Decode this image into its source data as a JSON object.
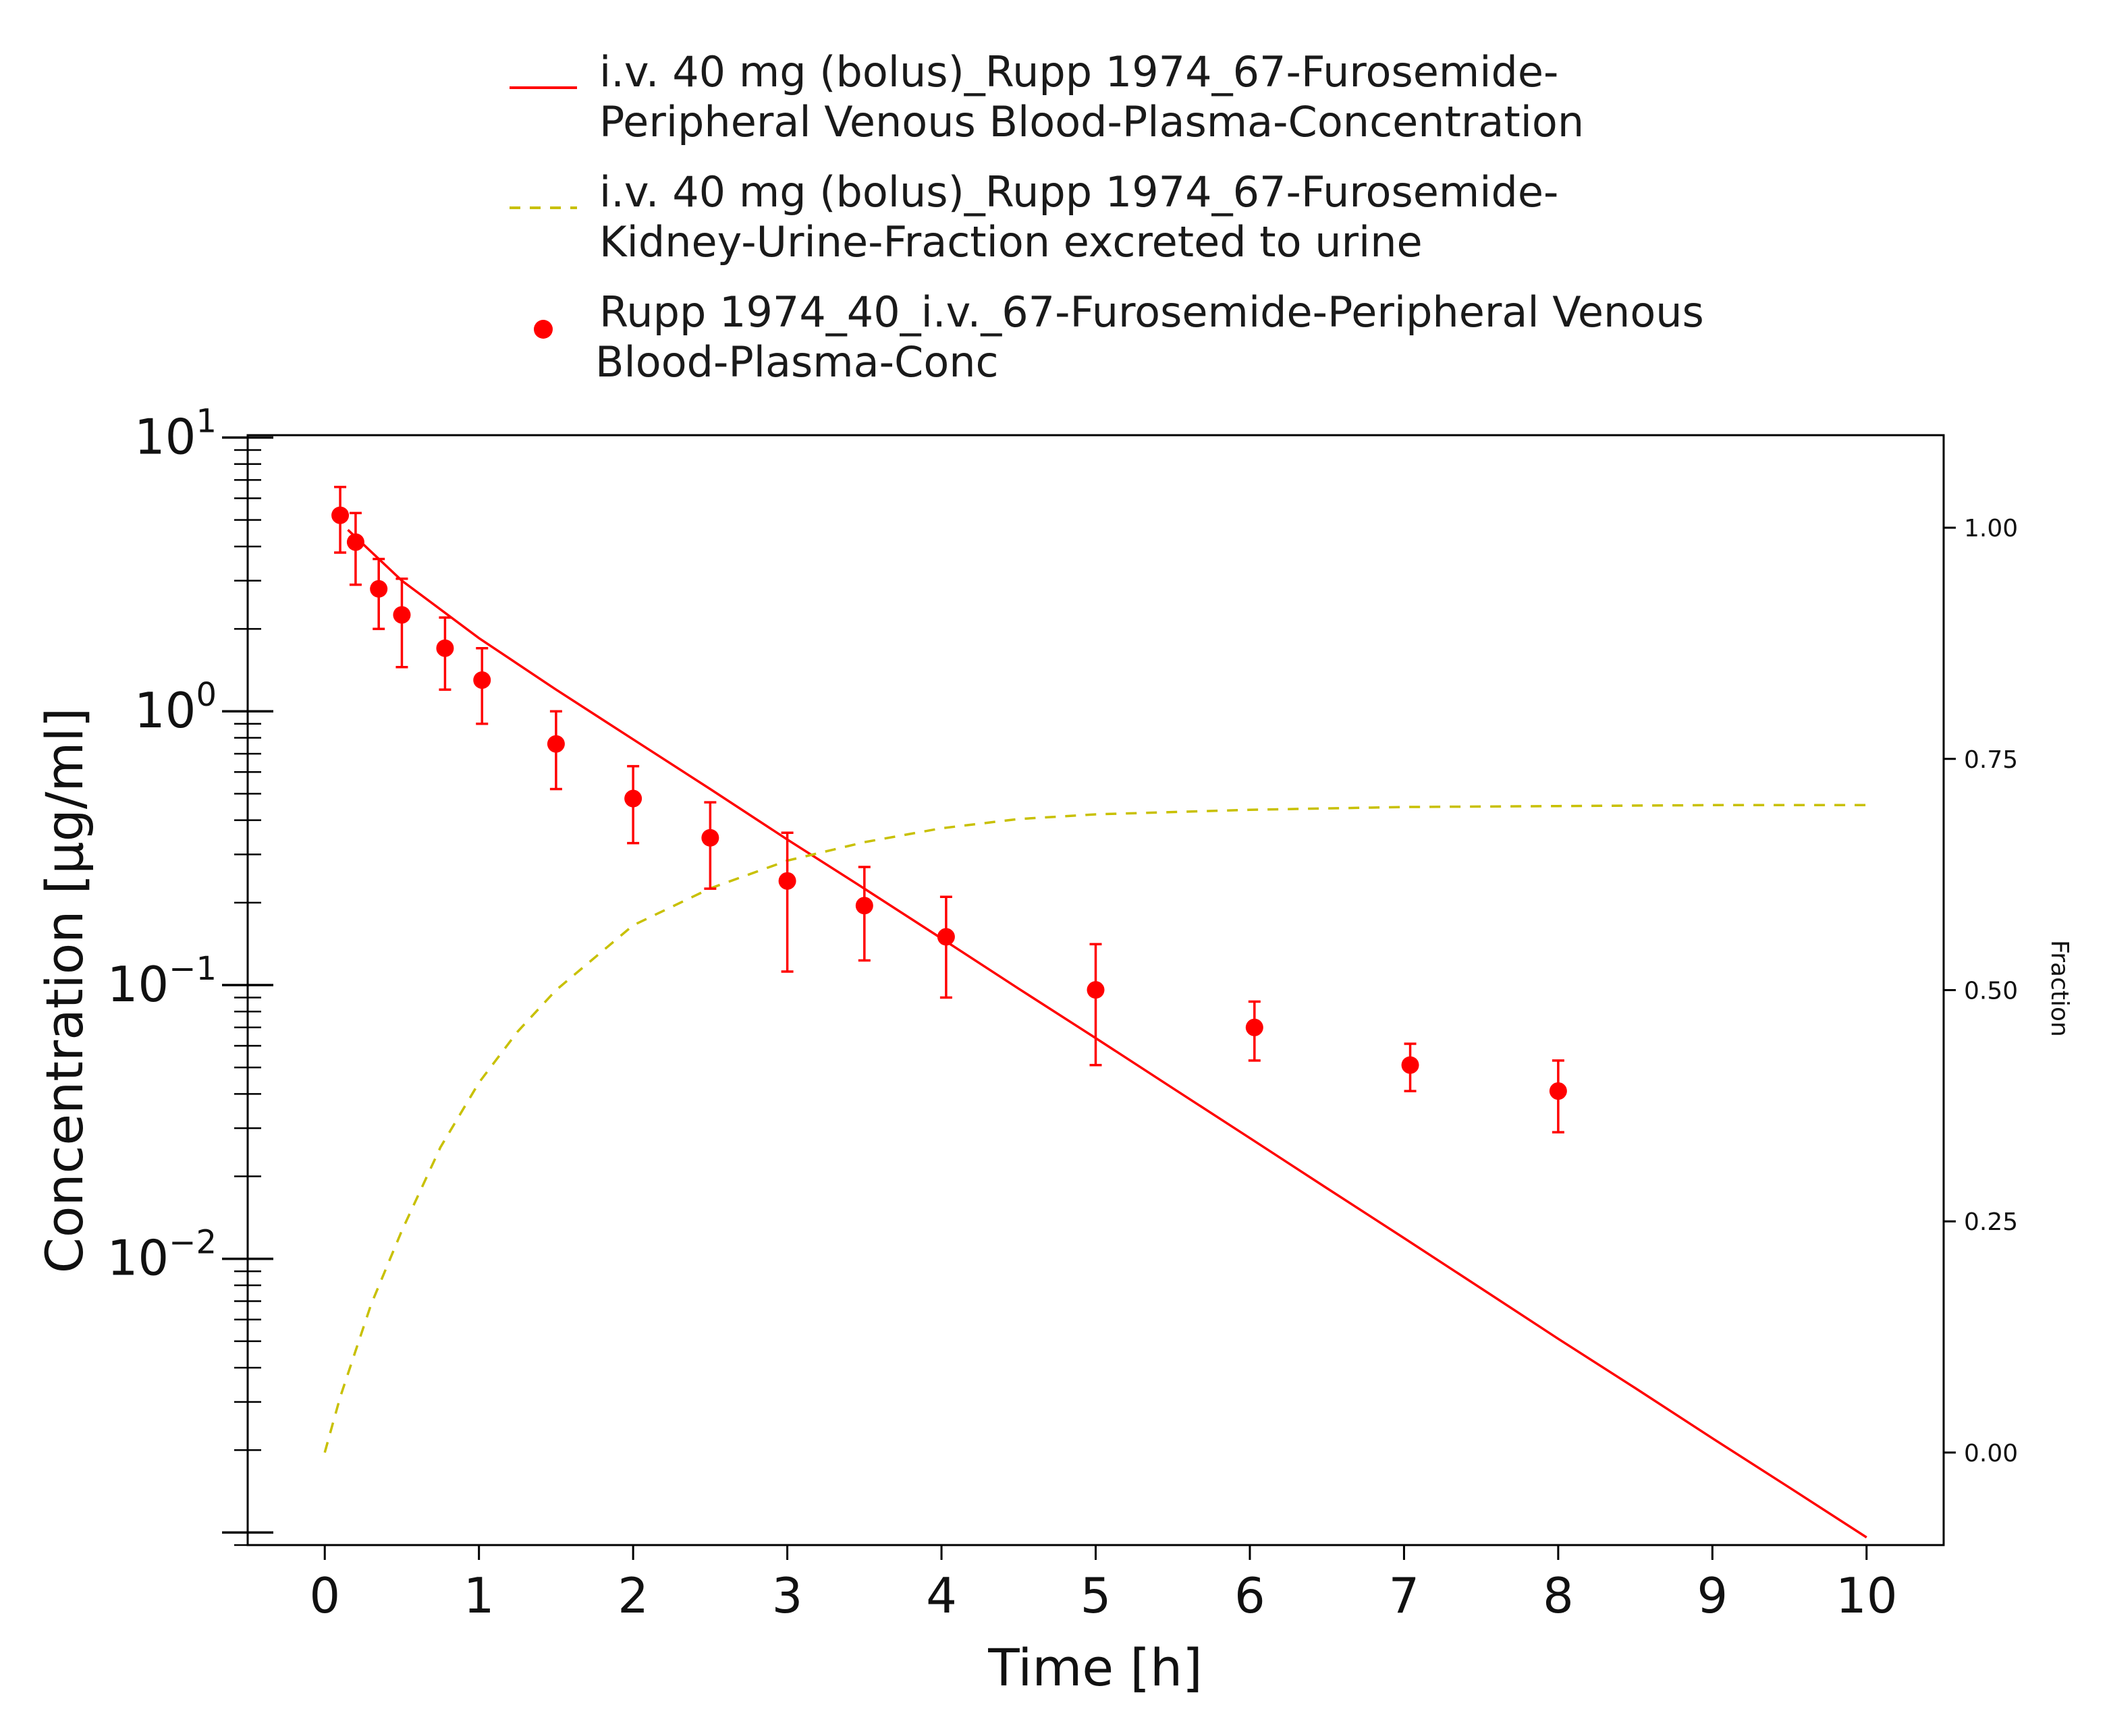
{
  "chart_data": {
    "type": "line",
    "x_axis": {
      "label": "Time [h]",
      "range": [
        -0.5,
        10.5
      ],
      "ticks": [
        0,
        1,
        2,
        3,
        4,
        5,
        6,
        7,
        8,
        9,
        10
      ],
      "tick_labels": [
        "0",
        "1",
        "2",
        "3",
        "4",
        "5",
        "6",
        "7",
        "8",
        "9",
        "10"
      ]
    },
    "y_axis_left": {
      "label": "Concentration [µg/ml]",
      "scale": "log",
      "range": [
        0.0009,
        10.2
      ],
      "ticks": [
        0.01,
        0.1,
        1,
        10
      ],
      "tick_labels": [
        {
          "base": "10",
          "exp": "−2"
        },
        {
          "base": "10",
          "exp": "−1"
        },
        {
          "base": "10",
          "exp": "0"
        },
        {
          "base": "10",
          "exp": "1"
        }
      ]
    },
    "y_axis_right": {
      "label": "Fraction",
      "scale": "linear",
      "range": [
        -0.1,
        1.1
      ],
      "ticks": [
        0,
        0.25,
        0.5,
        0.75,
        1.0
      ],
      "tick_labels": [
        "0.00",
        "0.25",
        "0.50",
        "0.75",
        "1.00"
      ]
    },
    "legend": {
      "placement": "top",
      "entries": [
        {
          "lines": [
            "i.v. 40 mg (bolus)_Rupp 1974_67-Furosemide-",
            "Peripheral Venous Blood-Plasma-Concentration"
          ],
          "style": "solid",
          "color": "#ff0000"
        },
        {
          "lines": [
            "i.v. 40 mg (bolus)_Rupp 1974_67-Furosemide-",
            "Kidney-Urine-Fraction excreted to urine"
          ],
          "style": "dashed",
          "color": "#c8c000"
        },
        {
          "lines": [
            "Rupp 1974_40_i.v._67-Furosemide-Peripheral Venous",
            "Blood-Plasma-Conc"
          ],
          "style": "marker",
          "color": "#ff0000"
        }
      ]
    },
    "series": [
      {
        "name": "i.v. 40 mg (bolus)_Rupp 1974_67-Furosemide-Peripheral Venous Blood-Plasma-Concentration",
        "axis": "left",
        "style": "solid",
        "color": "#ff0000",
        "x": [
          0.15,
          0.5,
          1,
          1.5,
          2,
          2.5,
          3,
          3.5,
          4,
          4.5,
          5,
          5.5,
          6,
          6.5,
          7,
          7.5,
          8,
          8.5,
          9,
          9.5,
          10
        ],
        "y": [
          4.6,
          3.0,
          1.85,
          1.2,
          0.79,
          0.52,
          0.34,
          0.225,
          0.148,
          0.097,
          0.064,
          0.042,
          0.0276,
          0.0181,
          0.0119,
          0.0078,
          0.0051,
          0.00337,
          0.00221,
          0.00146,
          0.00096
        ]
      },
      {
        "name": "i.v. 40 mg (bolus)_Rupp 1974_67-Furosemide-Kidney-Urine-Fraction excreted to urine",
        "axis": "right",
        "style": "dashed",
        "color": "#c8c000",
        "x": [
          0,
          0.05,
          0.1,
          0.2,
          0.3,
          0.4,
          0.5,
          0.75,
          1,
          1.25,
          1.5,
          2,
          2.5,
          3,
          3.5,
          4,
          4.5,
          5,
          6,
          7,
          8,
          9,
          10
        ],
        "y": [
          0.0,
          0.03,
          0.06,
          0.11,
          0.16,
          0.2,
          0.24,
          0.33,
          0.4,
          0.455,
          0.5,
          0.57,
          0.61,
          0.64,
          0.66,
          0.675,
          0.685,
          0.69,
          0.695,
          0.698,
          0.699,
          0.7,
          0.7
        ]
      },
      {
        "name": "Rupp 1974_40_i.v._67-Furosemide-Peripheral Venous Blood-Plasma-Conc",
        "axis": "left",
        "style": "marker",
        "color": "#ff0000",
        "points": [
          {
            "x": 0.1,
            "y": 5.2,
            "lo": 3.8,
            "hi": 6.6
          },
          {
            "x": 0.2,
            "y": 4.15,
            "lo": 2.9,
            "hi": 5.3
          },
          {
            "x": 0.35,
            "y": 2.8,
            "lo": 2.0,
            "hi": 3.6
          },
          {
            "x": 0.5,
            "y": 2.25,
            "lo": 1.45,
            "hi": 3.05
          },
          {
            "x": 0.78,
            "y": 1.7,
            "lo": 1.2,
            "hi": 2.2
          },
          {
            "x": 1.02,
            "y": 1.3,
            "lo": 0.9,
            "hi": 1.7
          },
          {
            "x": 1.5,
            "y": 0.76,
            "lo": 0.52,
            "hi": 1.0
          },
          {
            "x": 2.0,
            "y": 0.48,
            "lo": 0.33,
            "hi": 0.63
          },
          {
            "x": 2.5,
            "y": 0.345,
            "lo": 0.225,
            "hi": 0.465
          },
          {
            "x": 3.0,
            "y": 0.24,
            "lo": 0.112,
            "hi": 0.36
          },
          {
            "x": 3.5,
            "y": 0.195,
            "lo": 0.123,
            "hi": 0.27
          },
          {
            "x": 4.03,
            "y": 0.15,
            "lo": 0.09,
            "hi": 0.21
          },
          {
            "x": 5.0,
            "y": 0.096,
            "lo": 0.051,
            "hi": 0.141
          },
          {
            "x": 6.03,
            "y": 0.07,
            "lo": 0.053,
            "hi": 0.087
          },
          {
            "x": 7.04,
            "y": 0.051,
            "lo": 0.041,
            "hi": 0.061
          },
          {
            "x": 8.0,
            "y": 0.041,
            "lo": 0.029,
            "hi": 0.053
          }
        ]
      }
    ]
  }
}
